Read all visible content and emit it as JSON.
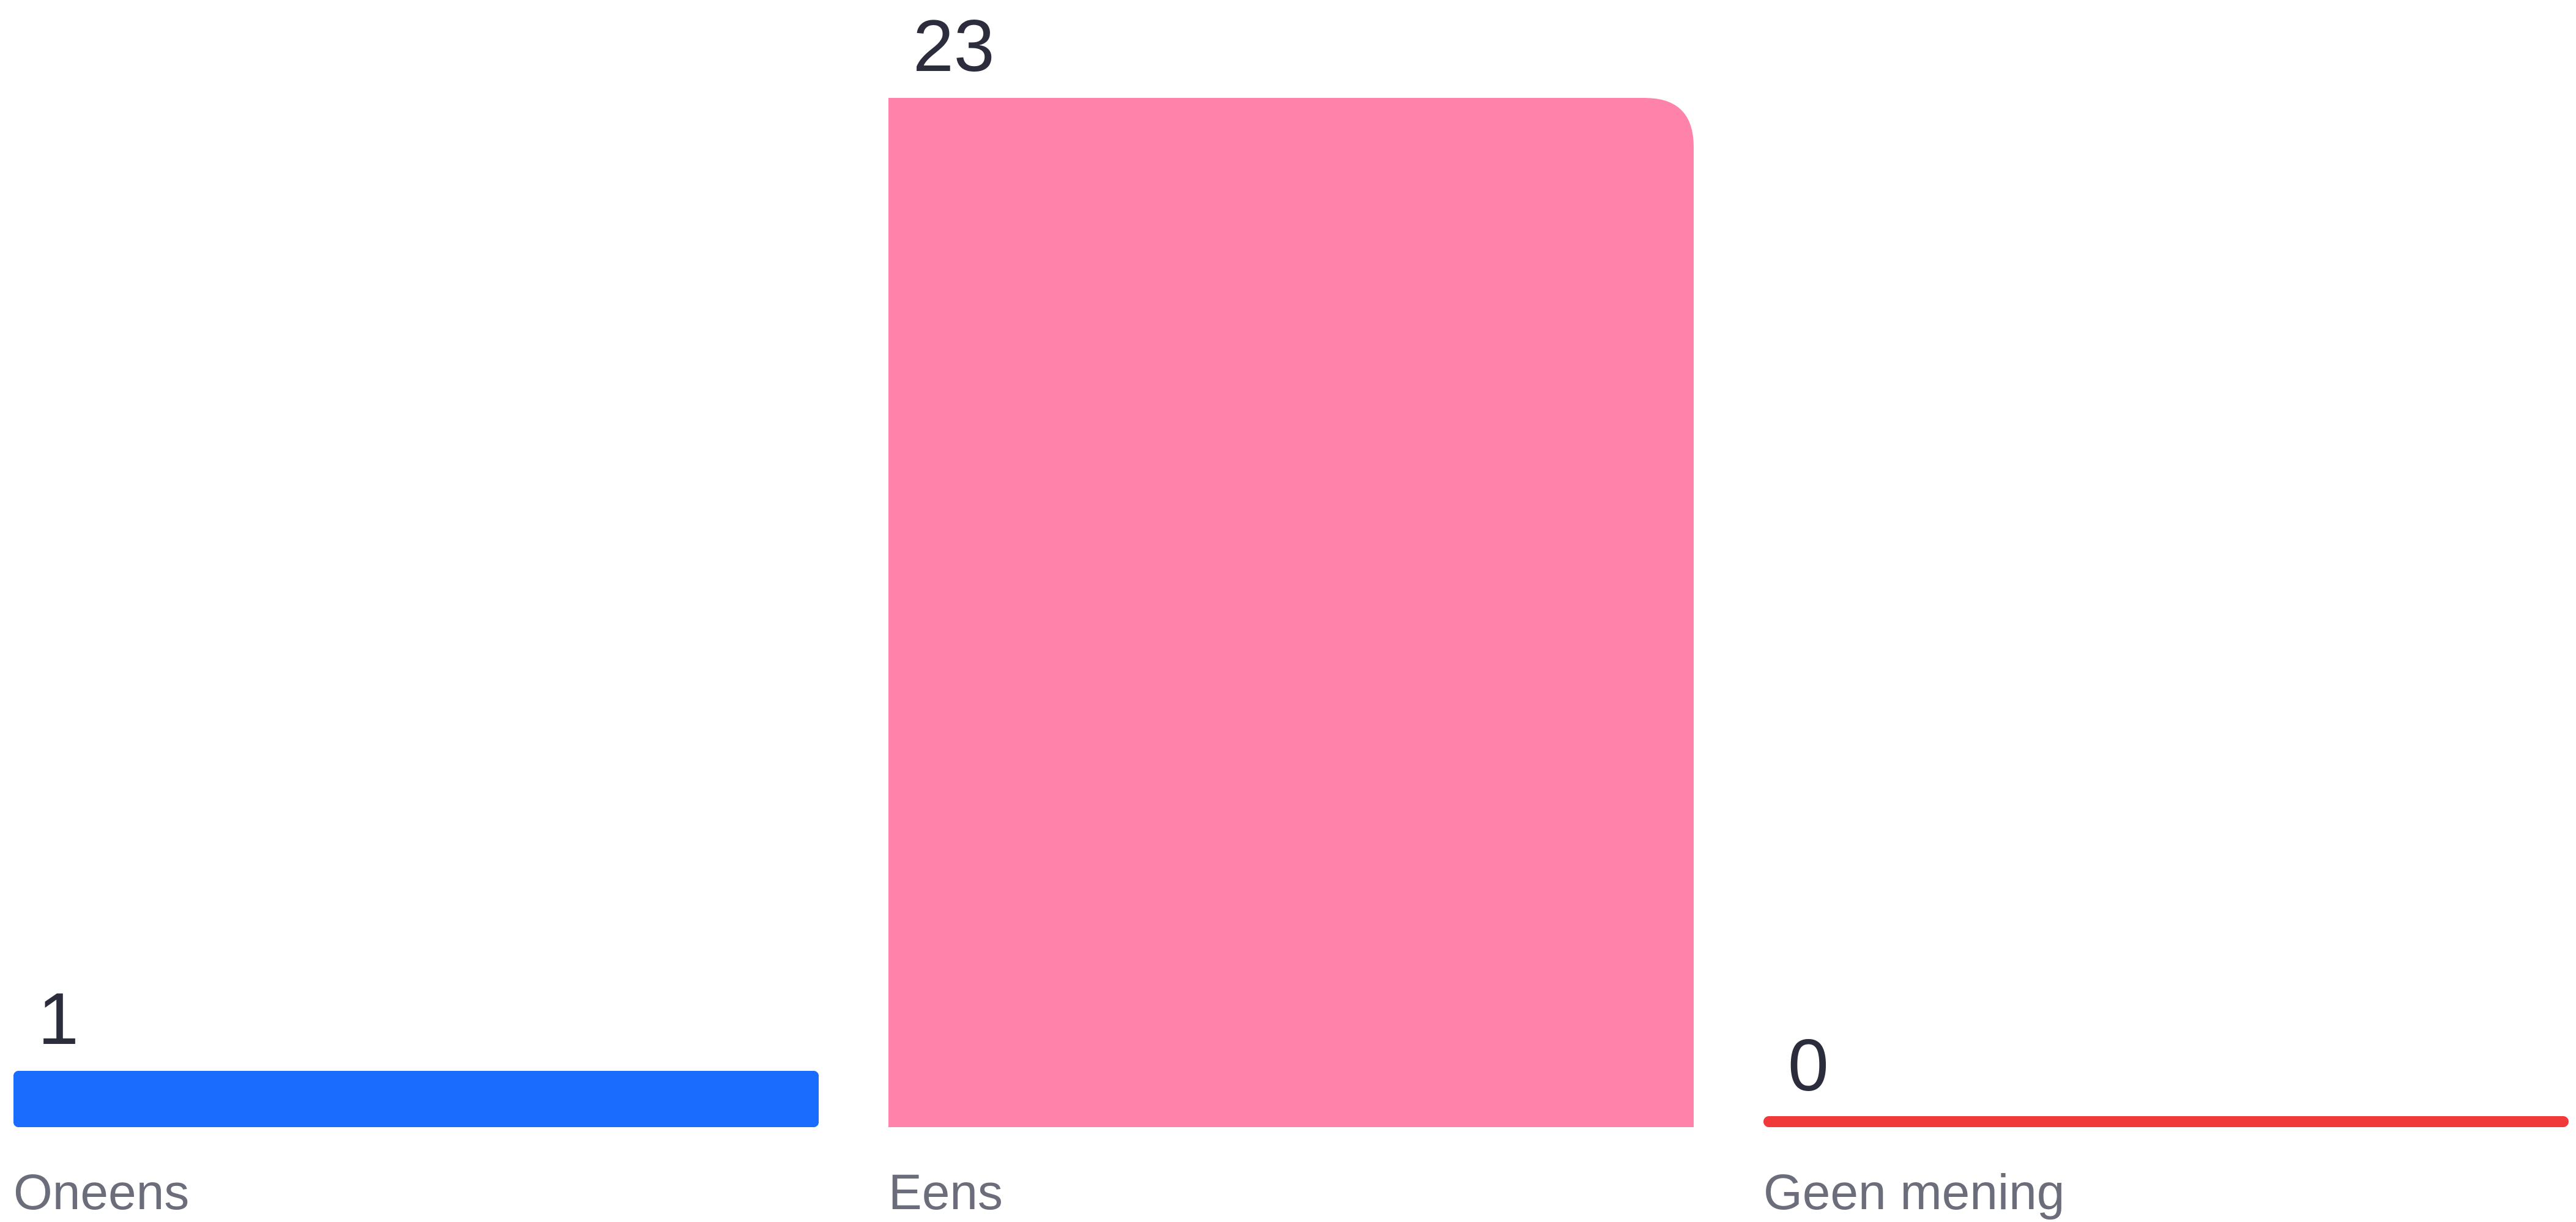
{
  "chart_data": {
    "type": "bar",
    "categories": [
      "Oneens",
      "Eens",
      "Geen mening"
    ],
    "values": [
      1,
      23,
      0
    ],
    "colors": [
      "#1a6cff",
      "#ff82aa",
      "#f03a3a"
    ],
    "ylim": [
      0,
      23
    ],
    "grid": false,
    "legend": "none"
  }
}
